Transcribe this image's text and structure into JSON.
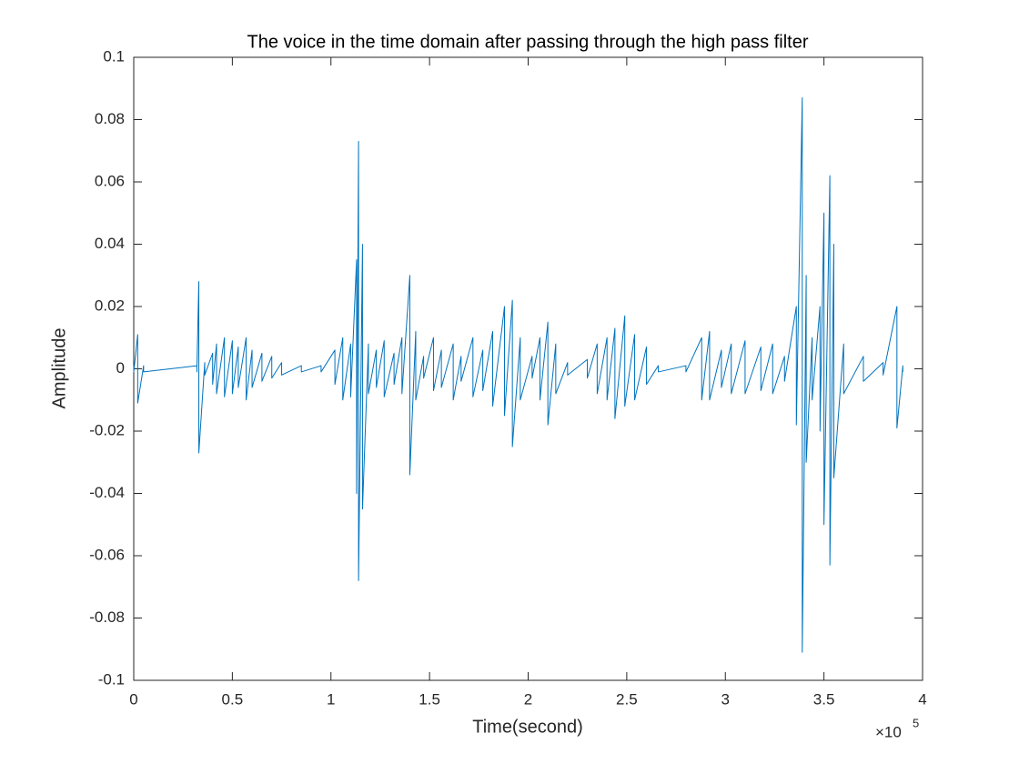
{
  "chart_data": {
    "type": "line",
    "title": "The voice in the time domain after passing through the high pass filter",
    "x_label": "Time(second)",
    "y_label": "Amplitude",
    "x_multiplier": "×10",
    "x_multiplier_power": "5",
    "xlim": [
      0,
      400000
    ],
    "xticks": [
      0,
      {
        "value": 50000,
        "label": "0.5"
      },
      {
        "value": 100000,
        "label": "1"
      },
      {
        "value": 150000,
        "label": "1.5"
      },
      {
        "value": 200000,
        "label": "2"
      },
      {
        "value": 250000,
        "label": "2.5"
      },
      {
        "value": 300000,
        "label": "3"
      },
      {
        "value": 350000,
        "label": "3.5"
      },
      {
        "value": 400000,
        "label": "4"
      }
    ],
    "ylim": [
      -0.1,
      0.1
    ],
    "yticks": [
      -0.1,
      -0.08,
      -0.06,
      -0.04,
      -0.02,
      0,
      0.02,
      0.04,
      0.06,
      0.08,
      0.1
    ],
    "grid": false,
    "series": [
      {
        "color": "#0072bd",
        "x": [
          0,
          0,
          2000,
          2000,
          5000,
          5000,
          32000,
          32000,
          33000,
          33000,
          36000,
          36000,
          40000,
          40000,
          42000,
          42000,
          46000,
          46000,
          50000,
          50000,
          53000,
          53000,
          57000,
          57000,
          60000,
          60000,
          65000,
          65000,
          70000,
          70000,
          75000,
          75000,
          85000,
          85000,
          95000,
          95000,
          102000,
          102000,
          106000,
          106000,
          110000,
          110000,
          113000,
          113000,
          114000,
          114000,
          116000,
          116000,
          119000,
          119000,
          123000,
          123000,
          127000,
          127000,
          132000,
          132000,
          136000,
          136000,
          140000,
          140000,
          143000,
          143000,
          147000,
          147000,
          152000,
          152000,
          156000,
          156000,
          162000,
          162000,
          166000,
          166000,
          172000,
          172000,
          177000,
          177000,
          182000,
          182000,
          188000,
          188000,
          192000,
          192000,
          196000,
          196000,
          202000,
          202000,
          206000,
          206000,
          210000,
          210000,
          214000,
          214000,
          220000,
          220000,
          230000,
          230000,
          235000,
          235000,
          240000,
          240000,
          244000,
          244000,
          249000,
          249000,
          254000,
          254000,
          260000,
          260000,
          266000,
          266000,
          280000,
          280000,
          288000,
          288000,
          292000,
          292000,
          298000,
          298000,
          303000,
          303000,
          310000,
          310000,
          318000,
          318000,
          324000,
          324000,
          330000,
          330000,
          336000,
          336000,
          339000,
          339000,
          341000,
          341000,
          344000,
          344000,
          348000,
          348000,
          350000,
          350000,
          353000,
          353000,
          355000,
          355000,
          360000,
          360000,
          370000,
          370000,
          380000,
          380000,
          387000,
          387000,
          390000,
          390000
        ],
        "values": [
          0.001,
          -0.001,
          0.011,
          -0.011,
          0.001,
          -0.001,
          0.001,
          -0.001,
          0.028,
          -0.027,
          0.002,
          -0.002,
          0.005,
          -0.005,
          0.008,
          -0.008,
          0.01,
          -0.009,
          0.009,
          -0.008,
          0.007,
          -0.006,
          0.01,
          -0.01,
          0.006,
          -0.006,
          0.005,
          -0.004,
          0.004,
          -0.003,
          0.002,
          -0.002,
          0.001,
          -0.001,
          0.001,
          -0.001,
          0.006,
          -0.005,
          0.01,
          -0.01,
          0.008,
          -0.009,
          0.035,
          -0.04,
          0.073,
          -0.068,
          0.04,
          -0.045,
          0.008,
          -0.008,
          0.006,
          -0.006,
          0.009,
          -0.009,
          0.005,
          -0.005,
          0.01,
          -0.008,
          0.03,
          -0.034,
          0.012,
          -0.01,
          0.004,
          -0.003,
          0.01,
          -0.007,
          0.006,
          -0.006,
          0.008,
          -0.01,
          0.004,
          -0.004,
          0.01,
          -0.009,
          0.006,
          -0.007,
          0.012,
          -0.012,
          0.02,
          -0.015,
          0.022,
          -0.025,
          0.01,
          -0.01,
          0.004,
          -0.003,
          0.01,
          -0.01,
          0.015,
          -0.018,
          0.008,
          -0.008,
          0.002,
          -0.002,
          0.003,
          -0.003,
          0.008,
          -0.008,
          0.01,
          -0.01,
          0.013,
          -0.016,
          0.017,
          -0.012,
          0.011,
          -0.01,
          0.007,
          -0.005,
          0.001,
          -0.001,
          0.001,
          -0.001,
          0.01,
          -0.01,
          0.012,
          -0.01,
          0.006,
          -0.006,
          0.008,
          -0.008,
          0.009,
          -0.008,
          0.007,
          -0.007,
          0.008,
          -0.008,
          0.004,
          -0.004,
          0.02,
          -0.018,
          0.087,
          -0.091,
          0.03,
          -0.03,
          0.01,
          -0.01,
          0.02,
          -0.02,
          0.05,
          -0.05,
          0.062,
          -0.063,
          0.04,
          -0.035,
          0.008,
          -0.008,
          0.004,
          -0.004,
          0.002,
          -0.002,
          0.02,
          -0.019,
          0.001,
          -0.001
        ]
      }
    ]
  }
}
